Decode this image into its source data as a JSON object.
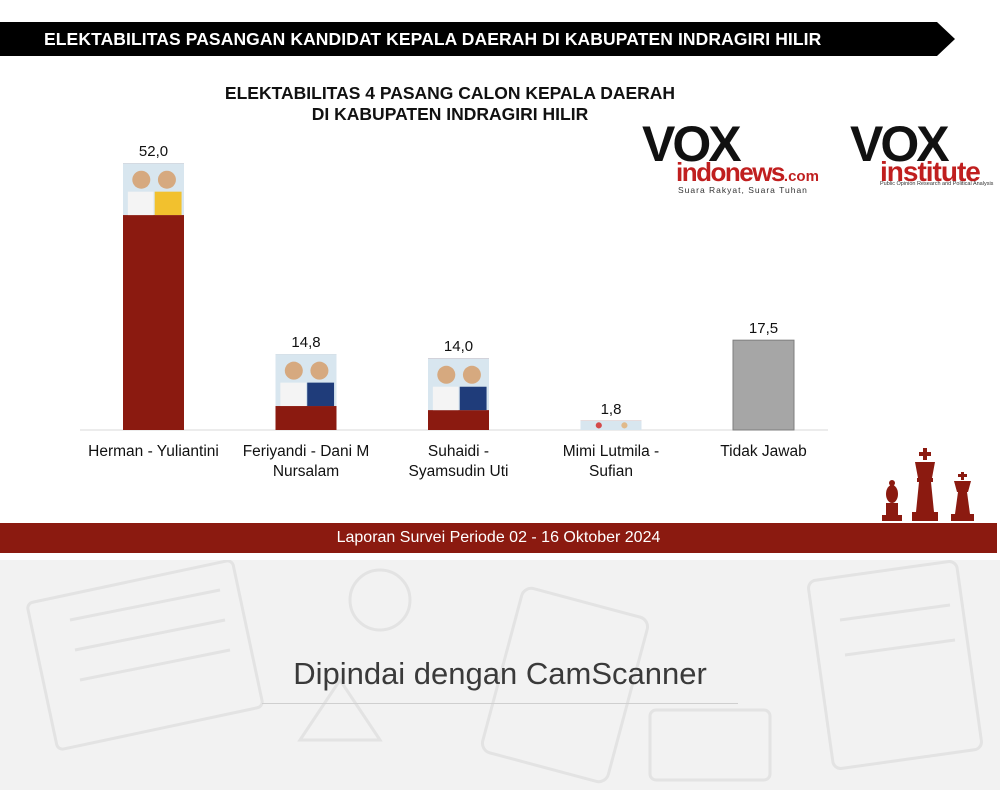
{
  "header": {
    "title": "ELEKTABILITAS PASANGAN KANDIDAT KEPALA  DAERAH DI KABUPATEN INDRAGIRI HILIR"
  },
  "logos": {
    "vox_indonews": {
      "vox": "VOX",
      "sub": "indonews",
      "dotcom": ".com",
      "tagline": "Suara Rakyat, Suara Tuhan"
    },
    "vox_institute": {
      "vox": "VOX",
      "sub": "institute",
      "tagline": "Public Opinion Research and Political Analysis"
    }
  },
  "chart_data": {
    "type": "bar",
    "title_lines": [
      "ELEKTABILITAS 4 PASANG CALON KEPALA DAERAH",
      "DI KABUPATEN INDRAGIRI HILIR"
    ],
    "categories": [
      [
        "Herman - Yuliantini"
      ],
      [
        "Feriyandi - Dani M",
        "Nursalam"
      ],
      [
        "Suhaidi -",
        "Syamsudin Uti"
      ],
      [
        "Mimi Lutmila -",
        "Sufian"
      ],
      [
        "Tidak Jawab"
      ]
    ],
    "values": [
      52.0,
      14.8,
      14.0,
      1.8,
      17.5
    ],
    "value_labels": [
      "52,0",
      "14,8",
      "14,0",
      "1,8",
      "17,5"
    ],
    "colors": [
      "#8b1a10",
      "#8b1a10",
      "#8b1a10",
      "#8b1a10",
      "#a6a6a6"
    ],
    "has_photo": [
      true,
      true,
      true,
      true,
      false
    ],
    "ylim": [
      0,
      60
    ],
    "grid": false,
    "legend": "none"
  },
  "footer": {
    "text": "Laporan Survei Periode 02 - 16 Oktober 2024"
  },
  "scan": {
    "text": "Dipindai dengan CamScanner"
  }
}
